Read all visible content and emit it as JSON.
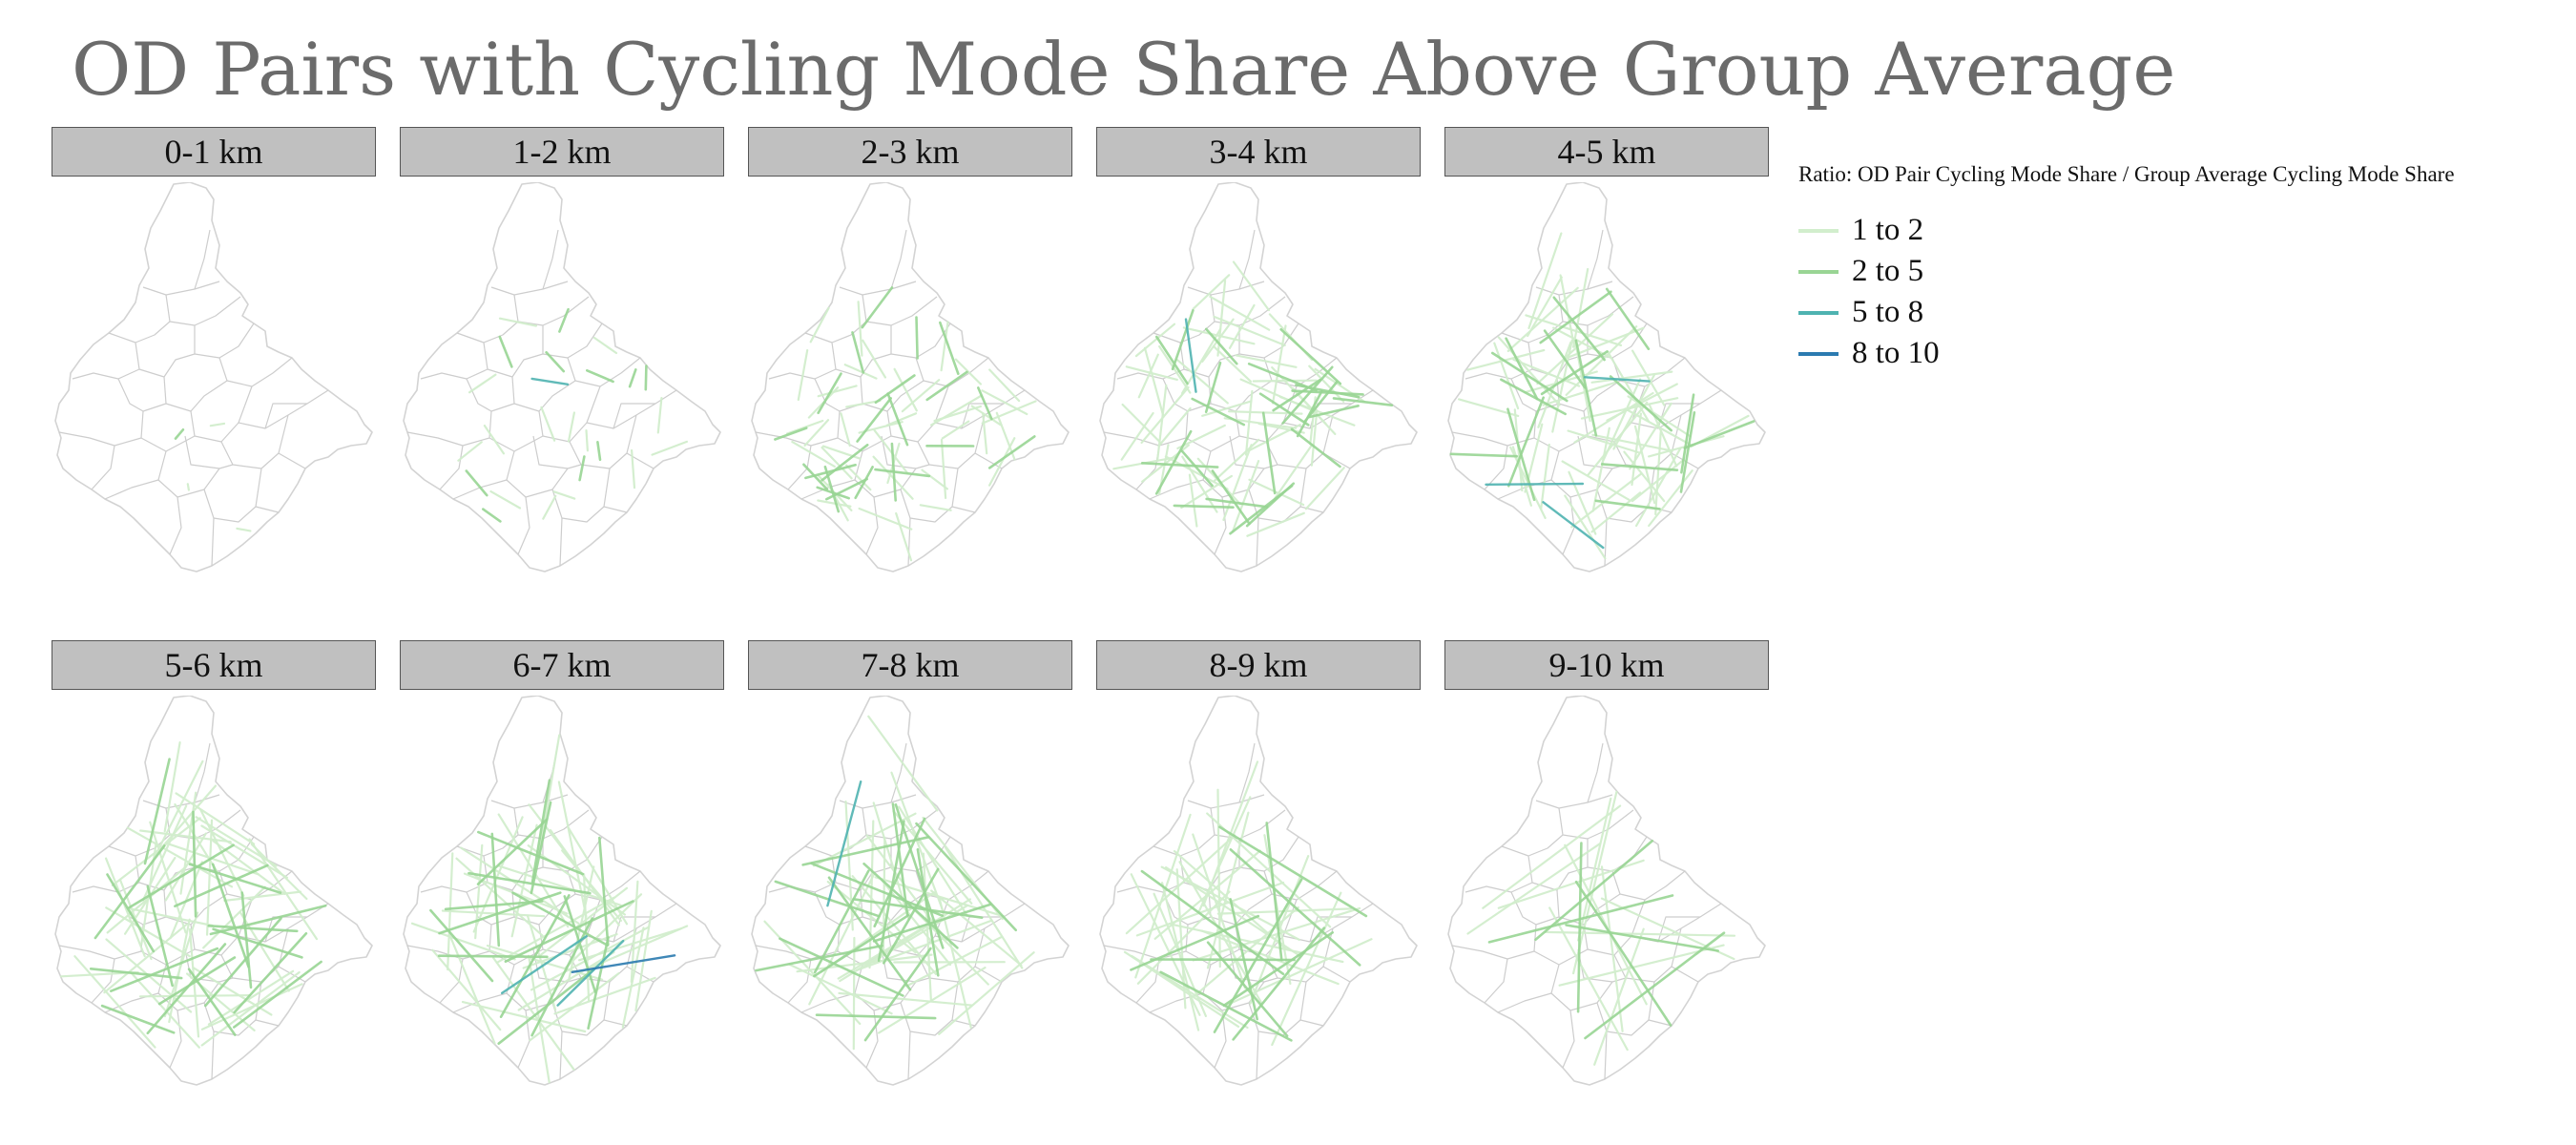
{
  "title": "OD Pairs with Cycling Mode Share Above Group Average",
  "legend": {
    "title": "Ratio: OD Pair Cycling Mode Share / Group Average Cycling Mode Share",
    "items": [
      {
        "label": "1 to 2",
        "color": "#d2eecd"
      },
      {
        "label": "2 to 5",
        "color": "#99d594"
      },
      {
        "label": "5 to 8",
        "color": "#4fb3b1"
      },
      {
        "label": "8 to 10",
        "color": "#2b7bb0"
      }
    ]
  },
  "colors": {
    "boundary_outer": "#d3d3d3",
    "boundary_inner": "#cdcdcd",
    "strip_bg": "#c0c0c0",
    "title_text": "#6b6b6b"
  },
  "panels": [
    {
      "label": "0-1 km",
      "counts": [
        3,
        1,
        0,
        0
      ]
    },
    {
      "label": "1-2 km",
      "counts": [
        14,
        10,
        1,
        0
      ]
    },
    {
      "label": "2-3 km",
      "counts": [
        42,
        22,
        0,
        0
      ]
    },
    {
      "label": "3-4 km",
      "counts": [
        55,
        26,
        1,
        0
      ]
    },
    {
      "label": "4-5 km",
      "counts": [
        55,
        18,
        3,
        0
      ]
    },
    {
      "label": "5-6 km",
      "counts": [
        45,
        22,
        0,
        0
      ]
    },
    {
      "label": "6-7 km",
      "counts": [
        40,
        18,
        2,
        1
      ]
    },
    {
      "label": "7-8 km",
      "counts": [
        35,
        20,
        1,
        0
      ]
    },
    {
      "label": "8-9 km",
      "counts": [
        30,
        12,
        0,
        0
      ]
    },
    {
      "label": "9-10 km",
      "counts": [
        12,
        6,
        0,
        0
      ]
    }
  ]
}
